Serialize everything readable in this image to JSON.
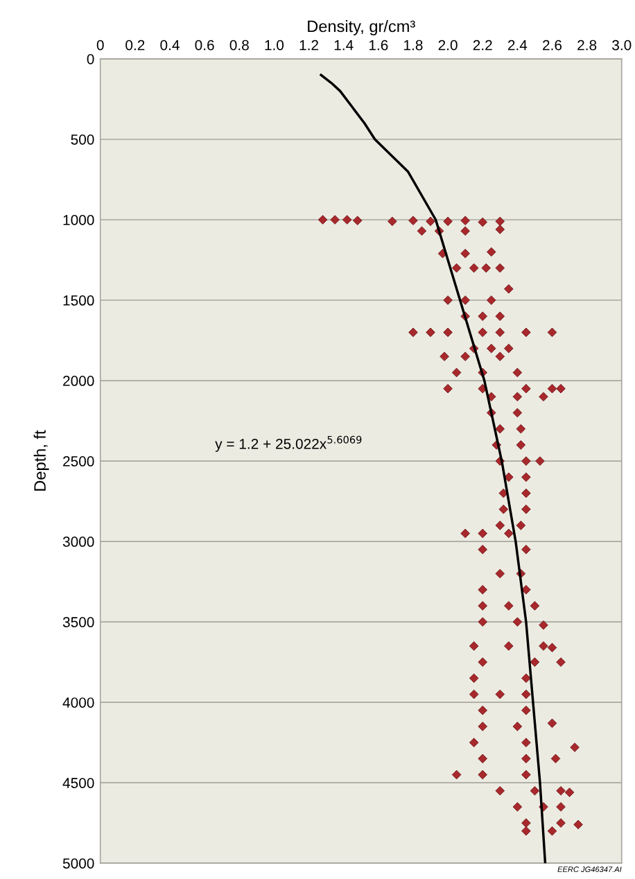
{
  "chart_data": {
    "type": "scatter",
    "xlabel": "Density, gr/cm³",
    "ylabel": "Depth, ft",
    "xlim": [
      0,
      3.0
    ],
    "ylim": [
      5000,
      0
    ],
    "xticks": [
      0,
      0.2,
      0.4,
      0.6,
      0.8,
      {
        "value": 1,
        "label": "1.0"
      },
      1.2,
      1.4,
      1.6,
      1.8,
      {
        "value": 2,
        "label": "2.0"
      },
      2.2,
      2.4,
      2.6,
      2.8,
      {
        "value": 3,
        "label": "3.0"
      }
    ],
    "yticks": [
      0,
      500,
      1000,
      1500,
      2000,
      2500,
      3000,
      3500,
      4000,
      4500,
      5000
    ],
    "grid": "y",
    "legend": false,
    "marker": "diamond",
    "series": [
      {
        "color": "#a8282c",
        "x": [
          1.28,
          1.35,
          1.42,
          1.48,
          1.68,
          1.8,
          1.9,
          2.0,
          2.1,
          2.2,
          2.3,
          1.85,
          1.95,
          2.1,
          2.3,
          1.97,
          2.1,
          2.25,
          2.05,
          2.15,
          2.22,
          2.3,
          2.35,
          2.0,
          2.1,
          2.25,
          2.1,
          2.2,
          2.3,
          1.8,
          1.9,
          2.0,
          2.2,
          2.3,
          2.45,
          2.6,
          2.15,
          2.25,
          2.35,
          1.98,
          2.1,
          2.3,
          2.05,
          2.2,
          2.4,
          2.0,
          2.2,
          2.45,
          2.6,
          2.65,
          2.25,
          2.4,
          2.55,
          2.25,
          2.4,
          2.3,
          2.42,
          2.28,
          2.42,
          2.3,
          2.45,
          2.53,
          2.35,
          2.45,
          2.32,
          2.45,
          2.32,
          2.45,
          2.3,
          2.42,
          2.1,
          2.2,
          2.35,
          2.2,
          2.45,
          2.3,
          2.42,
          2.2,
          2.45,
          2.2,
          2.35,
          2.5,
          2.2,
          2.4,
          2.55,
          2.15,
          2.35,
          2.55,
          2.6,
          2.2,
          2.5,
          2.65,
          2.15,
          2.45,
          2.15,
          2.3,
          2.45,
          2.2,
          2.45,
          2.2,
          2.4,
          2.6,
          2.15,
          2.45,
          2.73,
          2.2,
          2.45,
          2.62,
          2.05,
          2.2,
          2.45,
          2.3,
          2.5,
          2.65,
          2.7,
          2.4,
          2.55,
          2.65,
          2.45,
          2.65,
          2.75,
          2.45,
          2.6
        ],
        "values": [
          1000,
          1000,
          1000,
          1005,
          1010,
          1005,
          1010,
          1010,
          1005,
          1015,
          1010,
          1070,
          1070,
          1070,
          1060,
          1210,
          1210,
          1200,
          1300,
          1300,
          1300,
          1300,
          1430,
          1500,
          1500,
          1500,
          1600,
          1600,
          1600,
          1700,
          1700,
          1700,
          1700,
          1700,
          1700,
          1700,
          1800,
          1800,
          1800,
          1850,
          1850,
          1850,
          1950,
          1950,
          1950,
          2050,
          2050,
          2050,
          2050,
          2050,
          2100,
          2100,
          2100,
          2200,
          2200,
          2300,
          2300,
          2400,
          2400,
          2500,
          2500,
          2500,
          2600,
          2600,
          2700,
          2700,
          2800,
          2800,
          2900,
          2900,
          2950,
          2950,
          2950,
          3050,
          3050,
          3200,
          3200,
          3300,
          3300,
          3400,
          3400,
          3400,
          3500,
          3500,
          3520,
          3650,
          3650,
          3650,
          3660,
          3750,
          3750,
          3750,
          3850,
          3850,
          3950,
          3950,
          3950,
          4050,
          4050,
          4150,
          4150,
          4130,
          4250,
          4250,
          4280,
          4350,
          4350,
          4350,
          4450,
          4450,
          4450,
          4550,
          4550,
          4550,
          4560,
          4650,
          4650,
          4650,
          4750,
          4750,
          4760,
          4800,
          4800
        ]
      },
      {
        "type": "line",
        "color": "#000000",
        "marker": "none",
        "x": [
          1.27,
          1.33,
          1.38,
          1.45,
          1.52,
          1.58,
          1.77,
          1.93,
          2.07,
          2.21,
          2.31,
          2.39,
          2.45,
          2.49,
          2.53,
          2.56
        ],
        "values": [
          100,
          150,
          200,
          300,
          400,
          500,
          700,
          1000,
          1500,
          2000,
          2500,
          3000,
          3500,
          4000,
          4500,
          5000
        ]
      }
    ],
    "annotations": [
      "y = 1.2 + 25.022x$^{5.6069}$",
      "EERC JG46347.AI"
    ]
  }
}
